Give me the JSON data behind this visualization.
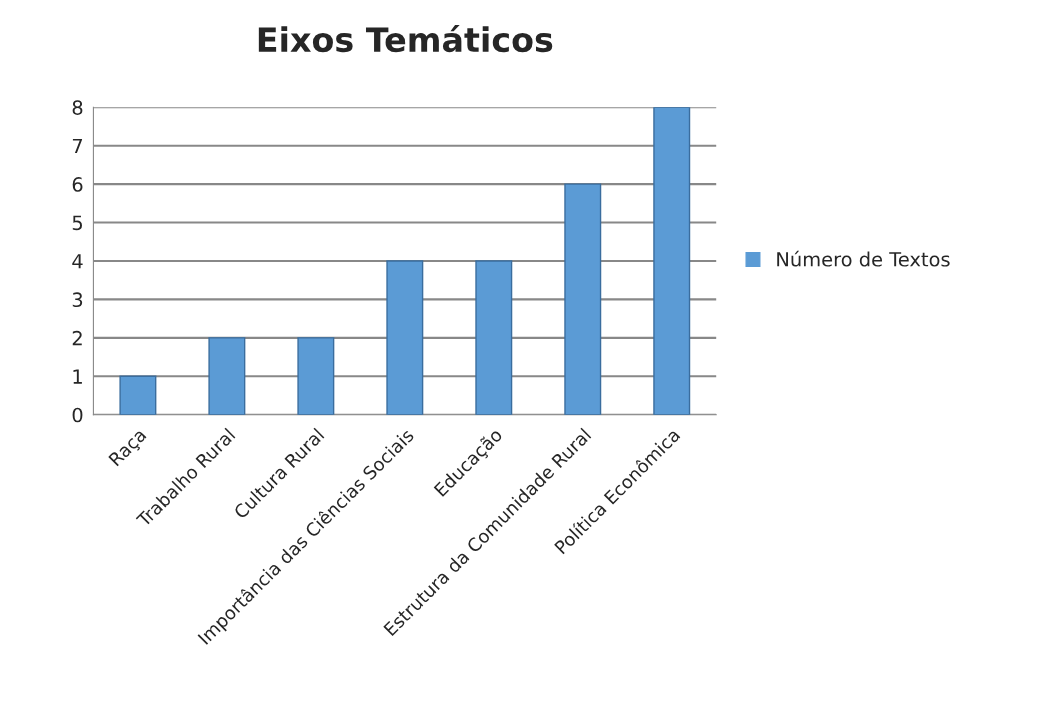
{
  "chart_data": {
    "type": "bar",
    "title": "Eixos Temáticos",
    "categories": [
      "Raça",
      "Trabalho Rural",
      "Cultura Rural",
      "Importância das Ciências Sociais",
      "Educação",
      "Estrutura da Comunidade Rural",
      "Política Econômica"
    ],
    "series": [
      {
        "name": "Número de Textos",
        "color": "#5b9bd5",
        "values": [
          1,
          2,
          2,
          4,
          4,
          6,
          8
        ]
      }
    ],
    "ylim": [
      0,
      8
    ],
    "yticks": [
      0,
      1,
      2,
      3,
      4,
      5,
      6,
      7,
      8
    ],
    "grid": "y",
    "legend": "right"
  }
}
